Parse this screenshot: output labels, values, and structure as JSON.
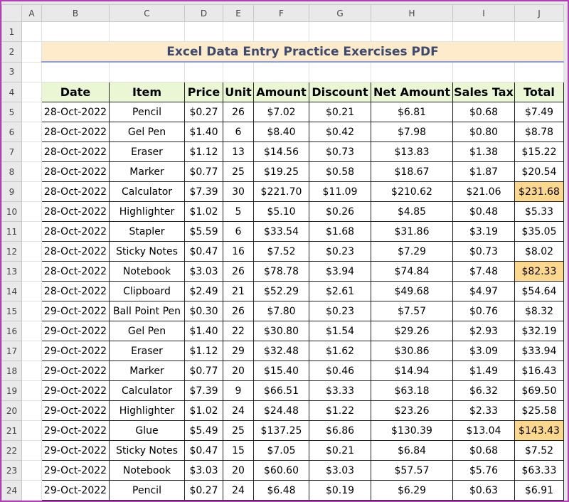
{
  "sheet": {
    "column_headers": [
      "A",
      "B",
      "C",
      "D",
      "E",
      "F",
      "G",
      "H",
      "I",
      "J"
    ],
    "row_numbers": [
      1,
      2,
      3,
      4,
      5,
      6,
      7,
      8,
      9,
      10,
      11,
      12,
      13,
      14,
      15,
      16,
      17,
      18,
      19,
      20,
      21,
      22,
      23,
      24
    ],
    "title": "Excel Data Entry Practice Exercises PDF",
    "highlight_color": "#fcd88e",
    "highlighted_cells": [
      [
        4,
        8
      ],
      [
        8,
        8
      ],
      [
        16,
        8
      ]
    ]
  },
  "table": {
    "header": [
      "Date",
      "Item",
      "Price",
      "Unit",
      "Amount",
      "Discount",
      "Net Amount",
      "Sales Tax",
      "Total"
    ],
    "rows": [
      [
        "28-Oct-2022",
        "Pencil",
        "$0.27",
        "26",
        "$7.02",
        "$0.21",
        "$6.81",
        "$0.68",
        "$7.49"
      ],
      [
        "28-Oct-2022",
        "Gel Pen",
        "$1.40",
        "6",
        "$8.40",
        "$0.42",
        "$7.98",
        "$0.80",
        "$8.78"
      ],
      [
        "28-Oct-2022",
        "Eraser",
        "$1.12",
        "13",
        "$14.56",
        "$0.73",
        "$13.83",
        "$1.38",
        "$15.22"
      ],
      [
        "28-Oct-2022",
        "Marker",
        "$0.77",
        "25",
        "$19.25",
        "$0.58",
        "$18.67",
        "$1.87",
        "$20.54"
      ],
      [
        "28-Oct-2022",
        "Calculator",
        "$7.39",
        "30",
        "$221.70",
        "$11.09",
        "$210.62",
        "$21.06",
        "$231.68"
      ],
      [
        "28-Oct-2022",
        "Highlighter",
        "$1.02",
        "5",
        "$5.10",
        "$0.26",
        "$4.85",
        "$0.48",
        "$5.33"
      ],
      [
        "28-Oct-2022",
        "Stapler",
        "$5.59",
        "6",
        "$33.54",
        "$1.68",
        "$31.86",
        "$3.19",
        "$35.05"
      ],
      [
        "28-Oct-2022",
        "Sticky Notes",
        "$0.47",
        "16",
        "$7.52",
        "$0.23",
        "$7.29",
        "$0.73",
        "$8.02"
      ],
      [
        "28-Oct-2022",
        "Notebook",
        "$3.03",
        "26",
        "$78.78",
        "$3.94",
        "$74.84",
        "$7.48",
        "$82.33"
      ],
      [
        "28-Oct-2022",
        "Clipboard",
        "$2.49",
        "21",
        "$52.29",
        "$2.61",
        "$49.68",
        "$4.97",
        "$54.64"
      ],
      [
        "29-Oct-2022",
        "Ball Point Pen",
        "$0.30",
        "26",
        "$7.80",
        "$0.23",
        "$7.57",
        "$0.76",
        "$8.32"
      ],
      [
        "29-Oct-2022",
        "Gel Pen",
        "$1.40",
        "22",
        "$30.80",
        "$1.54",
        "$29.26",
        "$2.93",
        "$32.19"
      ],
      [
        "29-Oct-2022",
        "Eraser",
        "$1.12",
        "29",
        "$32.48",
        "$1.62",
        "$30.86",
        "$3.09",
        "$33.94"
      ],
      [
        "29-Oct-2022",
        "Marker",
        "$0.77",
        "20",
        "$15.40",
        "$0.46",
        "$14.94",
        "$1.49",
        "$16.43"
      ],
      [
        "29-Oct-2022",
        "Calculator",
        "$7.39",
        "9",
        "$66.51",
        "$3.33",
        "$63.18",
        "$6.32",
        "$69.50"
      ],
      [
        "29-Oct-2022",
        "Highlighter",
        "$1.02",
        "24",
        "$24.48",
        "$1.22",
        "$23.26",
        "$2.33",
        "$25.58"
      ],
      [
        "29-Oct-2022",
        "Glue",
        "$5.49",
        "25",
        "$137.25",
        "$6.86",
        "$130.39",
        "$13.04",
        "$143.43"
      ],
      [
        "29-Oct-2022",
        "Sticky Notes",
        "$0.47",
        "15",
        "$7.05",
        "$0.21",
        "$6.84",
        "$0.68",
        "$7.52"
      ],
      [
        "29-Oct-2022",
        "Notebook",
        "$3.03",
        "20",
        "$60.60",
        "$3.03",
        "$57.57",
        "$5.76",
        "$63.33"
      ],
      [
        "29-Oct-2022",
        "Pencil",
        "$0.27",
        "24",
        "$6.48",
        "$0.19",
        "$6.29",
        "$0.63",
        "$6.91"
      ]
    ]
  }
}
